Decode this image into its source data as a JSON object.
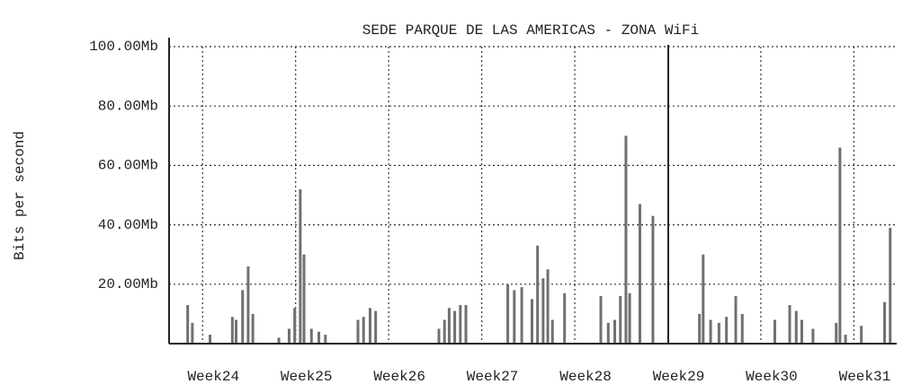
{
  "chart_data": {
    "type": "bar",
    "title": "SEDE PARQUE DE LAS AMERICAS - ZONA WiFi",
    "y_label": "Bits per second",
    "x": [
      23.84,
      23.89,
      24.08,
      24.32,
      24.36,
      24.43,
      24.49,
      24.54,
      24.82,
      24.93,
      24.99,
      25.05,
      25.09,
      25.17,
      25.25,
      25.32,
      25.67,
      25.73,
      25.8,
      25.86,
      26.54,
      26.6,
      26.65,
      26.71,
      26.77,
      26.83,
      27.28,
      27.35,
      27.43,
      27.54,
      27.6,
      27.66,
      27.71,
      27.76,
      27.89,
      28.28,
      28.36,
      28.43,
      28.49,
      28.55,
      28.59,
      28.7,
      28.84,
      29.34,
      29.38,
      29.46,
      29.55,
      29.63,
      29.73,
      29.8,
      30.15,
      30.31,
      30.38,
      30.44,
      30.56,
      30.81,
      30.85,
      30.91,
      31.08,
      31.33,
      31.39
    ],
    "values": [
      13,
      7,
      3,
      9,
      8,
      18,
      26,
      10,
      2,
      5,
      12,
      52,
      30,
      5,
      4,
      3,
      8,
      9,
      12,
      11,
      5,
      8,
      12,
      11,
      13,
      13,
      20,
      18,
      19,
      15,
      33,
      22,
      25,
      8,
      17,
      16,
      7,
      8,
      16,
      70,
      17,
      47,
      43,
      10,
      30,
      8,
      7,
      9,
      16,
      10,
      8,
      13,
      11,
      8,
      5,
      7,
      66,
      3,
      6,
      14,
      39
    ],
    "color": "#707070",
    "xlim": [
      23.64,
      31.46
    ],
    "xticks": [
      {
        "value": 24,
        "label": "Week24"
      },
      {
        "value": 25,
        "label": "Week25"
      },
      {
        "value": 26,
        "label": "Week26"
      },
      {
        "value": 27,
        "label": "Week27"
      },
      {
        "value": 28,
        "label": "Week28"
      },
      {
        "value": 29,
        "label": "Week29"
      },
      {
        "value": 30,
        "label": "Week30"
      },
      {
        "value": 31,
        "label": "Week31"
      }
    ],
    "ylim": [
      0,
      100
    ],
    "yticks": [
      {
        "value": 20,
        "label": "20.00Mb"
      },
      {
        "value": 40,
        "label": "40.00Mb"
      },
      {
        "value": 60,
        "label": "60.00Mb"
      },
      {
        "value": 80,
        "label": "80.00Mb"
      },
      {
        "value": 100,
        "label": "100.00Mb"
      }
    ],
    "grid": true
  }
}
